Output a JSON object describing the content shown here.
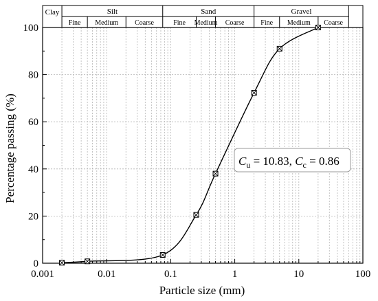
{
  "chart_data": {
    "type": "line",
    "xlabel": "Particle size (mm)",
    "ylabel": "Percentage passing (%)",
    "x_scale": "log",
    "xlim": [
      0.001,
      100
    ],
    "ylim": [
      0,
      100
    ],
    "x_ticks": [
      "0.001",
      "0.01",
      "0.1",
      "1",
      "10",
      "100"
    ],
    "y_ticks": [
      "0",
      "20",
      "40",
      "60",
      "80",
      "100"
    ],
    "grid": true,
    "series": [
      {
        "x": [
          0.002,
          0.005,
          0.075,
          0.25,
          0.5,
          2,
          5,
          20
        ],
        "y": [
          0.2,
          0.8,
          3.5,
          20.5,
          38,
          72.3,
          91,
          100
        ]
      }
    ],
    "annotation": {
      "cu_symbol": "C",
      "cu_sub": "u",
      "cu_value": " = 10.83, ",
      "cc_symbol": "C",
      "cc_sub": "c",
      "cc_value": " = 0.86"
    },
    "classification": {
      "clay": "Clay",
      "groups": [
        {
          "name": "Silt",
          "subs": [
            "Fine",
            "Medium",
            "Coarse"
          ]
        },
        {
          "name": "Sand",
          "subs": [
            "Fine",
            "Medium",
            "Coarse"
          ]
        },
        {
          "name": "Gravel",
          "subs": [
            "Fine",
            "Medium",
            "Coarse"
          ]
        }
      ]
    }
  }
}
